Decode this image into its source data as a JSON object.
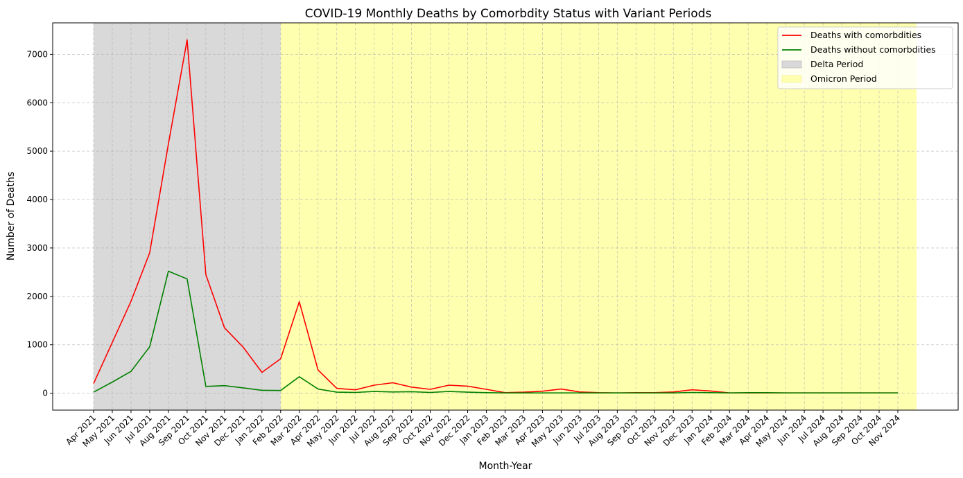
{
  "chart_data": {
    "type": "line",
    "title": "COVID-19 Monthly Deaths by Comorbdity Status with Variant Periods",
    "xlabel": "Month-Year",
    "ylabel": "Number of Deaths",
    "ylim": [
      -350,
      7650
    ],
    "yticks": [
      0,
      1000,
      2000,
      3000,
      4000,
      5000,
      6000,
      7000
    ],
    "grid": true,
    "legend_position": "top-right",
    "categories": [
      "Apr 2021",
      "May 2021",
      "Jun 2021",
      "Jul 2021",
      "Aug 2021",
      "Sep 2021",
      "Oct 2021",
      "Nov 2021",
      "Dec 2021",
      "Jan 2022",
      "Feb 2022",
      "Mar 2022",
      "Apr 2022",
      "May 2022",
      "Jun 2022",
      "Jul 2022",
      "Aug 2022",
      "Sep 2022",
      "Oct 2022",
      "Nov 2022",
      "Dec 2022",
      "Jan 2023",
      "Feb 2023",
      "Mar 2023",
      "Apr 2023",
      "May 2023",
      "Jun 2023",
      "Jul 2023",
      "Aug 2023",
      "Sep 2023",
      "Oct 2023",
      "Nov 2023",
      "Dec 2023",
      "Jan 2024",
      "Feb 2024",
      "Mar 2024",
      "Apr 2024",
      "May 2024",
      "Jun 2024",
      "Jul 2024",
      "Aug 2024",
      "Sep 2024",
      "Oct 2024",
      "Nov 2024"
    ],
    "series": [
      {
        "name": "Deaths with comorbdities",
        "color": "#ff0000",
        "values": [
          200,
          1050,
          1900,
          2900,
          5150,
          7300,
          2450,
          1350,
          950,
          430,
          710,
          1890,
          480,
          100,
          70,
          165,
          215,
          125,
          80,
          165,
          145,
          80,
          10,
          20,
          40,
          85,
          25,
          10,
          5,
          10,
          10,
          25,
          70,
          45,
          5,
          5,
          5,
          5,
          5,
          5,
          5,
          5,
          5,
          5
        ]
      },
      {
        "name": "Deaths without comorbdities",
        "color": "#008000",
        "values": [
          20,
          230,
          450,
          960,
          2520,
          2360,
          140,
          155,
          110,
          60,
          55,
          340,
          85,
          20,
          15,
          35,
          25,
          30,
          15,
          35,
          20,
          10,
          5,
          5,
          5,
          5,
          5,
          5,
          5,
          5,
          5,
          5,
          15,
          10,
          5,
          10,
          10,
          5,
          5,
          5,
          5,
          5,
          5,
          5
        ]
      }
    ],
    "periods": [
      {
        "name": "Delta Period",
        "start": "Apr 2021",
        "end": "Feb 2022",
        "color": "#d9d9d9"
      },
      {
        "name": "Omicron Period",
        "start": "Feb 2022",
        "end": "Nov 2024",
        "color": "#ffffb0"
      }
    ]
  }
}
